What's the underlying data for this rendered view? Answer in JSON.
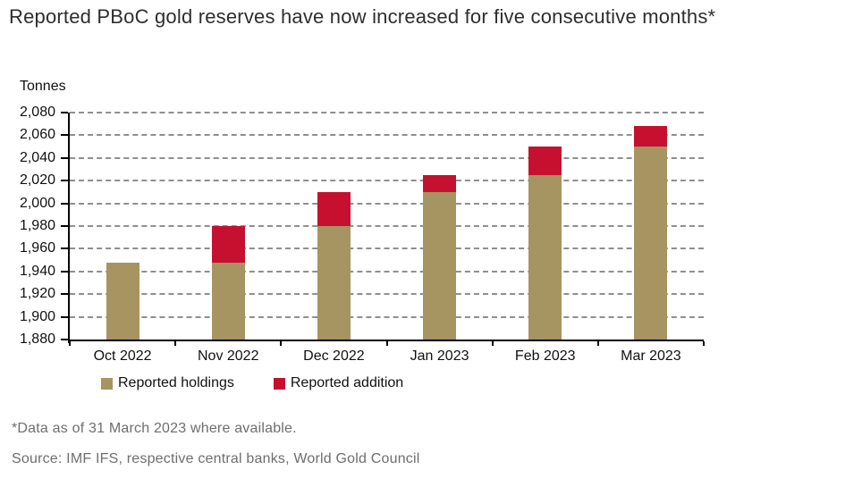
{
  "header": {
    "title": "Reported PBoC gold reserves have now increased for five consecutive months*"
  },
  "chart": {
    "units_label": "Tonnes"
  },
  "chart_data": {
    "type": "bar",
    "stacked": true,
    "categories": [
      "Oct 2022",
      "Nov 2022",
      "Dec 2022",
      "Jan 2023",
      "Feb 2023",
      "Mar 2023"
    ],
    "series": [
      {
        "name": "Reported holdings",
        "color": "#A69461",
        "values": [
          1948,
          1948,
          1980,
          2010,
          2025,
          2050
        ]
      },
      {
        "name": "Reported addition",
        "color": "#C5112F",
        "values": [
          0,
          32,
          30,
          15,
          25,
          18
        ]
      }
    ],
    "stack_totals": [
      1948,
      1980,
      2010,
      2025,
      2050,
      2068
    ],
    "title": "Reported PBoC gold reserves have now increased for five consecutive months*",
    "xlabel": "",
    "ylabel": "Tonnes",
    "ylim": [
      1880,
      2080
    ],
    "ytick_step": 20,
    "grid": "horizontal-dashed",
    "legend_position": "bottom-left"
  },
  "legend": {
    "items": [
      {
        "label": "Reported holdings",
        "color": "#A69461"
      },
      {
        "label": "Reported addition",
        "color": "#C5112F"
      }
    ]
  },
  "footnotes": {
    "note": "*Data as of 31 March 2023 where available.",
    "source": "Source: IMF IFS, respective central banks, World Gold Council"
  },
  "colors": {
    "holdings": "#A69461",
    "addition": "#C5112F",
    "axis": "#000000",
    "gridline": "#8f8f8f",
    "title_text": "#2e2e2e",
    "footnote_text": "#6e6e6e"
  }
}
